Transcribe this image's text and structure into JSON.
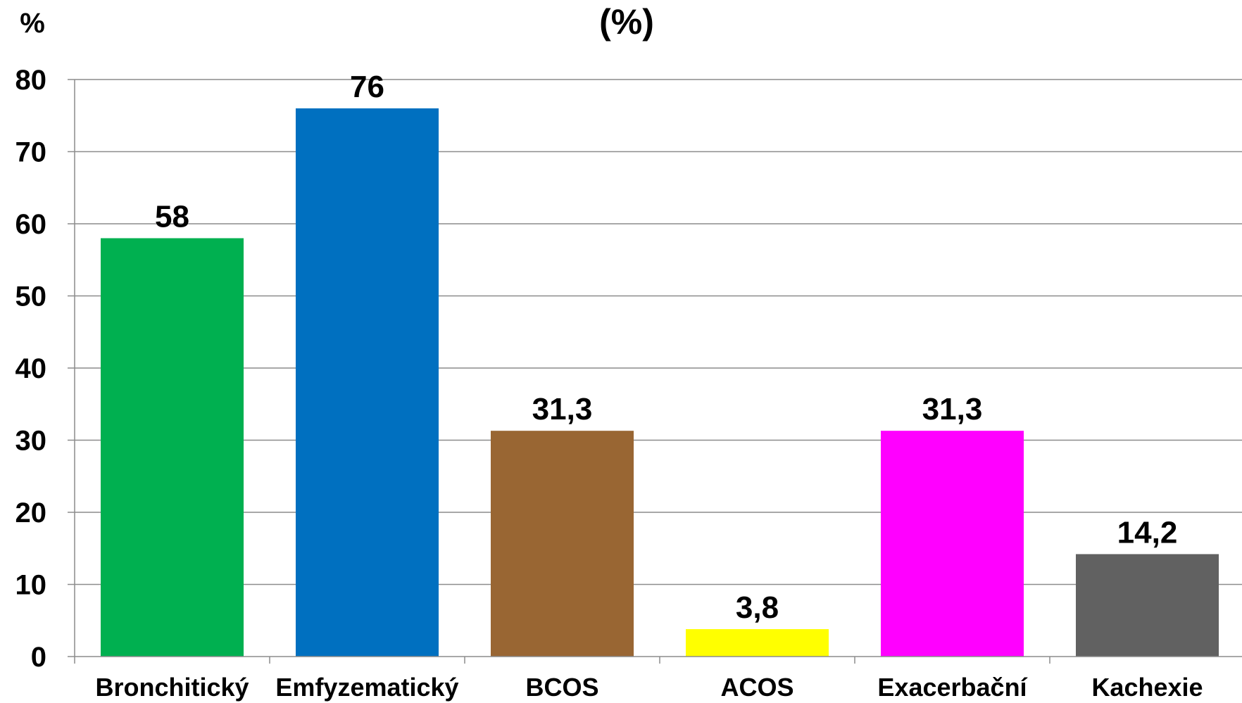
{
  "chart_data": {
    "type": "bar",
    "title": "(%)",
    "ylabel": "%",
    "xlabel": "",
    "categories": [
      "Bronchitický",
      "Emfyzematický",
      "BCOS",
      "ACOS",
      "Exacerbační",
      "Kachexie"
    ],
    "values": [
      58,
      76,
      31.3,
      3.8,
      31.3,
      14.2
    ],
    "value_labels": [
      "58",
      "76",
      "31,3",
      "3,8",
      "31,3",
      "14,2"
    ],
    "colors": [
      "#00B050",
      "#0070C0",
      "#996633",
      "#FFFF00",
      "#FF00FF",
      "#616161"
    ],
    "ylim": [
      0,
      80
    ],
    "yticks": [
      "0",
      "10",
      "20",
      "30",
      "40",
      "50",
      "60",
      "70",
      "80"
    ],
    "grid": true,
    "legend": "none"
  }
}
